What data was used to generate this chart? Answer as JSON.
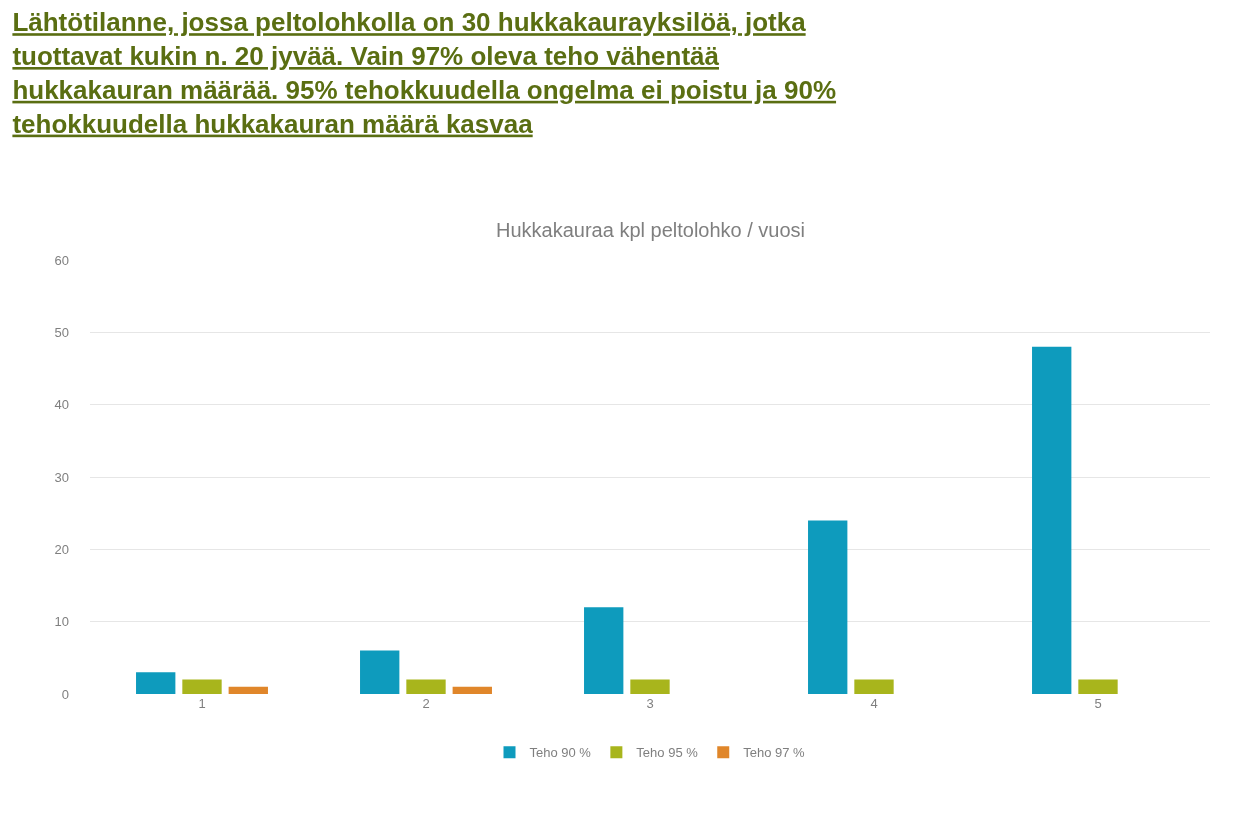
{
  "chart_data": {
    "type": "bar",
    "title": "Lähtötilanne, jossa peltolohkolla on 30 hukkakaurayksilöä, jotka tuottavat kukin n. 20 jyvää. Vain 97% oleva teho vähentää hukkakauran määrää. 95% tehokkuudella ongelma ei poistu ja 90% tehokkuudella hukkakauran määrä kasvaa",
    "subtitle": "Hukkakauraa kpl peltolohko / vuosi",
    "categories": [
      "1",
      "2",
      "3",
      "4",
      "5"
    ],
    "series": [
      {
        "name": "Teho 90 %",
        "color": "#0e9bbd",
        "values": [
          3,
          6,
          12,
          24,
          48
        ]
      },
      {
        "name": "Teho 95 %",
        "color": "#a8b51c",
        "values": [
          2,
          2,
          2,
          2,
          2
        ]
      },
      {
        "name": "Teho 97 %",
        "color": "#e0862a",
        "values": [
          1,
          1,
          0,
          0,
          0
        ]
      }
    ],
    "ylim": [
      0,
      60
    ],
    "yticks": [
      0,
      10,
      20,
      30,
      40,
      50,
      60
    ],
    "grid": "y",
    "legend": "bottom"
  }
}
